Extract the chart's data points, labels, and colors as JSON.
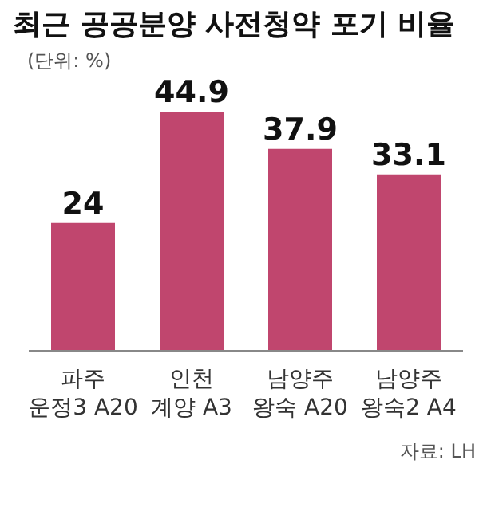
{
  "chart_data": {
    "type": "bar",
    "title": "최근 공공분양 사전청약 포기 비율",
    "subtitle": "(단위: %)",
    "categories": [
      "파주\n운정3 A20",
      "인천\n계양 A3",
      "남양주\n왕숙 A20",
      "남양주\n왕숙2 A4"
    ],
    "values": [
      24,
      44.9,
      37.9,
      33.1
    ],
    "color": "#c0466e",
    "data_labels": true,
    "grid": false,
    "annotations": [
      "자료: LH"
    ]
  }
}
